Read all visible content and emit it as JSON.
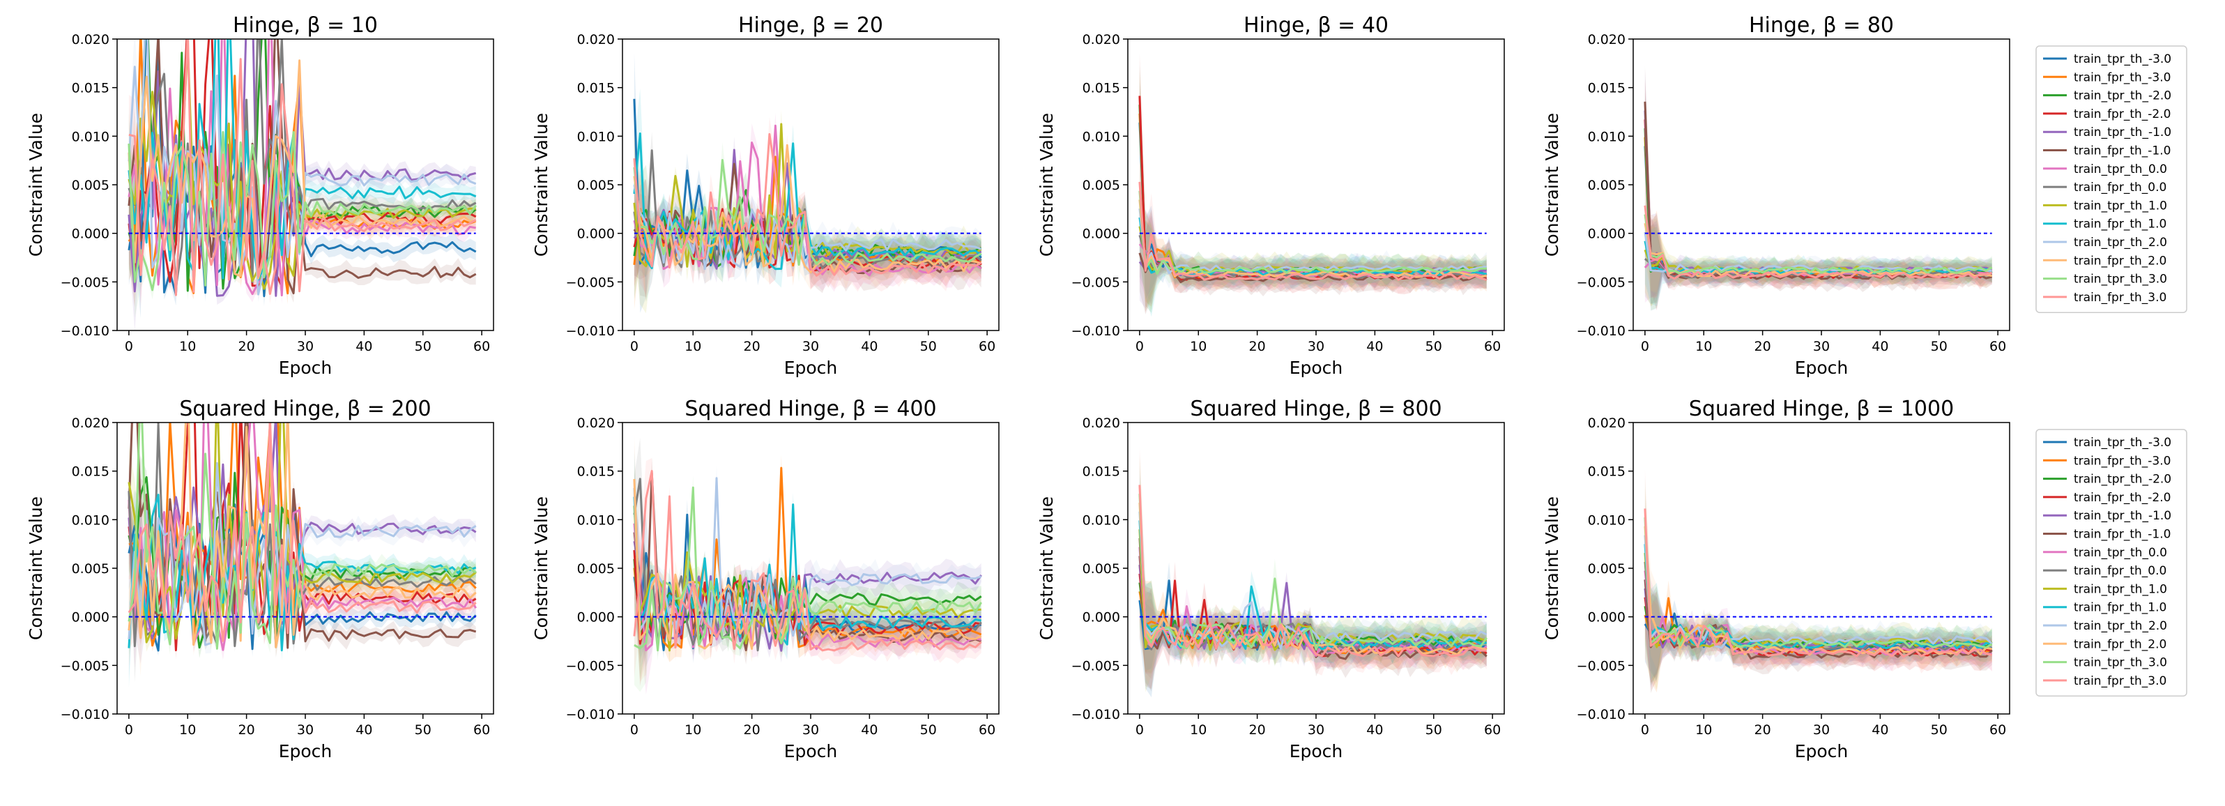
{
  "figure": {
    "legend_labels": [
      "train_tpr_th_-3.0",
      "train_fpr_th_-3.0",
      "train_tpr_th_-2.0",
      "train_fpr_th_-2.0",
      "train_tpr_th_-1.0",
      "train_fpr_th_-1.0",
      "train_tpr_th_0.0",
      "train_fpr_th_0.0",
      "train_tpr_th_1.0",
      "train_fpr_th_1.0",
      "train_tpr_th_2.0",
      "train_fpr_th_2.0",
      "train_tpr_th_3.0",
      "train_fpr_th_3.0"
    ],
    "series_colors": [
      "#1f77b4",
      "#ff7f0e",
      "#2ca02c",
      "#d62728",
      "#9467bd",
      "#8c564b",
      "#e377c2",
      "#7f7f7f",
      "#bcbd22",
      "#17becf",
      "#aec7e8",
      "#ffbb78",
      "#98df8a",
      "#ff9896"
    ],
    "reference_line": {
      "y": 0.0,
      "color": "#0000ff",
      "style": "dashed"
    }
  },
  "chart_data": [
    {
      "type": "line",
      "loss": "Hinge",
      "beta": "10",
      "title": "Hinge, β = 10",
      "xlabel": "Epoch",
      "ylabel": "Constraint Value",
      "xlim": [
        -2,
        62
      ],
      "ylim": [
        -0.01,
        0.02
      ],
      "xticks": [
        0,
        10,
        20,
        30,
        40,
        50,
        60
      ],
      "yticks": [
        -0.01,
        -0.005,
        0.0,
        0.005,
        0.01,
        0.015,
        0.02
      ],
      "ytick_labels": [
        "−0.010",
        "−0.005",
        "0.000",
        "0.005",
        "0.010",
        "0.015",
        "0.020"
      ],
      "x": "epochs 0–59",
      "profile": {
        "early_end": 30,
        "early_amp": 0.0085,
        "early_peak": 0.026,
        "early_prob": 0.18,
        "early_bias": 0.002,
        "late_amp": 0.0006,
        "band": 0.0008
      },
      "series_final_values": [
        -0.0015,
        0.001,
        0.0022,
        0.0015,
        0.006,
        -0.004,
        0.0005,
        0.003,
        0.002,
        0.0042,
        0.0055,
        0.0012,
        0.0025,
        0.0008
      ]
    },
    {
      "type": "line",
      "loss": "Hinge",
      "beta": "20",
      "title": "Hinge, β = 20",
      "xlabel": "Epoch",
      "ylabel": "Constraint Value",
      "xlim": [
        -2,
        62
      ],
      "ylim": [
        -0.01,
        0.02
      ],
      "xticks": [
        0,
        10,
        20,
        30,
        40,
        50,
        60
      ],
      "yticks": [
        -0.01,
        -0.005,
        0.0,
        0.005,
        0.01,
        0.015,
        0.02
      ],
      "ytick_labels": [
        "−0.010",
        "−0.005",
        "0.000",
        "0.005",
        "0.010",
        "0.015",
        "0.020"
      ],
      "x": "epochs 0–59",
      "profile": {
        "early_end": 30,
        "early_amp": 0.0032,
        "early_peak": 0.012,
        "early_prob": 0.1,
        "early_bias": -0.0005,
        "late_amp": 0.0006,
        "band": 0.0015
      },
      "series_final_values": [
        -0.002,
        -0.0025,
        -0.0018,
        -0.003,
        -0.0022,
        -0.0035,
        -0.0038,
        -0.0028,
        -0.0015,
        -0.002,
        -0.0012,
        -0.0033,
        -0.0026,
        -0.0036
      ]
    },
    {
      "type": "line",
      "loss": "Hinge",
      "beta": "40",
      "title": "Hinge, β = 40",
      "xlabel": "Epoch",
      "ylabel": "Constraint Value",
      "xlim": [
        -2,
        62
      ],
      "ylim": [
        -0.01,
        0.02
      ],
      "xticks": [
        0,
        10,
        20,
        30,
        40,
        50,
        60
      ],
      "yticks": [
        -0.01,
        -0.005,
        0.0,
        0.005,
        0.01,
        0.015,
        0.02
      ],
      "ytick_labels": [
        "−0.010",
        "−0.005",
        "0.000",
        "0.005",
        "0.010",
        "0.015",
        "0.020"
      ],
      "x": "epochs 0–59",
      "profile": {
        "early_end": 6,
        "early_amp": 0.0012,
        "early_peak": 0.003,
        "early_prob": 0.06,
        "early_bias": -0.003,
        "late_amp": 0.0003,
        "band": 0.0012
      },
      "series_final_values": [
        -0.004,
        -0.0042,
        -0.0038,
        -0.0044,
        -0.0039,
        -0.0046,
        -0.0041,
        -0.0043,
        -0.0037,
        -0.004,
        -0.0036,
        -0.0042,
        -0.0038,
        -0.0045
      ]
    },
    {
      "type": "line",
      "loss": "Hinge",
      "beta": "80",
      "title": "Hinge, β = 80",
      "xlabel": "Epoch",
      "ylabel": "Constraint Value",
      "xlim": [
        -2,
        62
      ],
      "ylim": [
        -0.01,
        0.02
      ],
      "xticks": [
        0,
        10,
        20,
        30,
        40,
        50,
        60
      ],
      "yticks": [
        -0.01,
        -0.005,
        0.0,
        0.005,
        0.01,
        0.015,
        0.02
      ],
      "ytick_labels": [
        "−0.010",
        "−0.005",
        "0.000",
        "0.005",
        "0.010",
        "0.015",
        "0.020"
      ],
      "x": "epochs 0–59",
      "profile": {
        "early_end": 4,
        "early_amp": 0.001,
        "early_peak": 0.002,
        "early_prob": 0.05,
        "early_bias": -0.003,
        "late_amp": 0.0003,
        "band": 0.001
      },
      "series_final_values": [
        -0.004,
        -0.0041,
        -0.0039,
        -0.0043,
        -0.0038,
        -0.0044,
        -0.004,
        -0.0042,
        -0.0037,
        -0.0039,
        -0.0036,
        -0.0041,
        -0.0038,
        -0.0043
      ]
    },
    {
      "type": "line",
      "loss": "Squared Hinge",
      "beta": "200",
      "title": "Squared Hinge, β = 200",
      "xlabel": "Epoch",
      "ylabel": "Constraint Value",
      "xlim": [
        -2,
        62
      ],
      "ylim": [
        -0.01,
        0.02
      ],
      "xticks": [
        0,
        10,
        20,
        30,
        40,
        50,
        60
      ],
      "yticks": [
        -0.01,
        -0.005,
        0.0,
        0.005,
        0.01,
        0.015,
        0.02
      ],
      "ytick_labels": [
        "−0.010",
        "−0.005",
        "0.000",
        "0.005",
        "0.010",
        "0.015",
        "0.020"
      ],
      "x": "epochs 0–59",
      "profile": {
        "early_end": 30,
        "early_amp": 0.0075,
        "early_peak": 0.024,
        "early_prob": 0.16,
        "early_bias": 0.004,
        "late_amp": 0.0006,
        "band": 0.0008
      },
      "series_final_values": [
        0.0,
        0.003,
        0.0045,
        0.002,
        0.009,
        -0.0018,
        0.0015,
        0.0035,
        0.004,
        0.005,
        0.0088,
        0.0025,
        0.0048,
        0.001
      ]
    },
    {
      "type": "line",
      "loss": "Squared Hinge",
      "beta": "400",
      "title": "Squared Hinge, β = 400",
      "xlabel": "Epoch",
      "ylabel": "Constraint Value",
      "xlim": [
        -2,
        62
      ],
      "ylim": [
        -0.01,
        0.02
      ],
      "xticks": [
        0,
        10,
        20,
        30,
        40,
        50,
        60
      ],
      "yticks": [
        -0.01,
        -0.005,
        0.0,
        0.005,
        0.01,
        0.015,
        0.02
      ],
      "ytick_labels": [
        "−0.010",
        "−0.005",
        "0.000",
        "0.005",
        "0.010",
        "0.015",
        "0.020"
      ],
      "x": "epochs 0–59",
      "profile": {
        "early_end": 30,
        "early_amp": 0.004,
        "early_peak": 0.016,
        "early_prob": 0.1,
        "early_bias": 0.0005,
        "late_amp": 0.0006,
        "band": 0.0012
      },
      "series_final_values": [
        -0.001,
        -0.0015,
        0.0018,
        -0.0012,
        0.004,
        -0.002,
        -0.0025,
        -0.0008,
        0.0005,
        -0.0005,
        0.0038,
        -0.0018,
        0.001,
        -0.0028
      ]
    },
    {
      "type": "line",
      "loss": "Squared Hinge",
      "beta": "800",
      "title": "Squared Hinge, β = 800",
      "xlabel": "Epoch",
      "ylabel": "Constraint Value",
      "xlim": [
        -2,
        62
      ],
      "ylim": [
        -0.01,
        0.02
      ],
      "xticks": [
        0,
        10,
        20,
        30,
        40,
        50,
        60
      ],
      "yticks": [
        -0.01,
        -0.005,
        0.0,
        0.005,
        0.01,
        0.015,
        0.02
      ],
      "ytick_labels": [
        "−0.010",
        "−0.005",
        "0.000",
        "0.005",
        "0.010",
        "0.015",
        "0.020"
      ],
      "x": "epochs 0–59",
      "profile": {
        "early_end": 30,
        "early_amp": 0.0014,
        "early_peak": 0.006,
        "early_prob": 0.05,
        "early_bias": -0.002,
        "late_amp": 0.0005,
        "band": 0.0015
      },
      "series_final_values": [
        -0.003,
        -0.0032,
        -0.0025,
        -0.0035,
        -0.0028,
        -0.0038,
        -0.0033,
        -0.003,
        -0.0022,
        -0.0027,
        -0.002,
        -0.0034,
        -0.0026,
        -0.0036
      ]
    },
    {
      "type": "line",
      "loss": "Squared Hinge",
      "beta": "1000",
      "title": "Squared Hinge, β = 1000",
      "xlabel": "Epoch",
      "ylabel": "Constraint Value",
      "xlim": [
        -2,
        62
      ],
      "ylim": [
        -0.01,
        0.02
      ],
      "xticks": [
        0,
        10,
        20,
        30,
        40,
        50,
        60
      ],
      "yticks": [
        -0.01,
        -0.005,
        0.0,
        0.005,
        0.01,
        0.015,
        0.02
      ],
      "ytick_labels": [
        "−0.010",
        "−0.005",
        "0.000",
        "0.005",
        "0.010",
        "0.015",
        "0.020"
      ],
      "x": "epochs 0–59",
      "profile": {
        "early_end": 15,
        "early_amp": 0.0012,
        "early_peak": 0.004,
        "early_prob": 0.05,
        "early_bias": -0.002,
        "late_amp": 0.0004,
        "band": 0.0013
      },
      "series_final_values": [
        -0.0032,
        -0.0034,
        -0.0028,
        -0.0036,
        -0.003,
        -0.0038,
        -0.0035,
        -0.0031,
        -0.0026,
        -0.0029,
        -0.0024,
        -0.0035,
        -0.0028,
        -0.0037
      ]
    }
  ]
}
